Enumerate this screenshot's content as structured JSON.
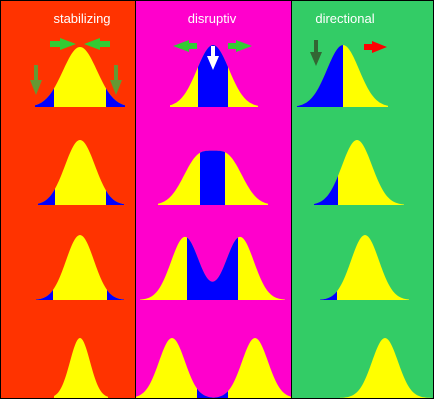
{
  "panels": [
    {
      "label": "stabilizing"
    },
    {
      "label": "disruptiv"
    },
    {
      "label": "directional"
    }
  ]
}
